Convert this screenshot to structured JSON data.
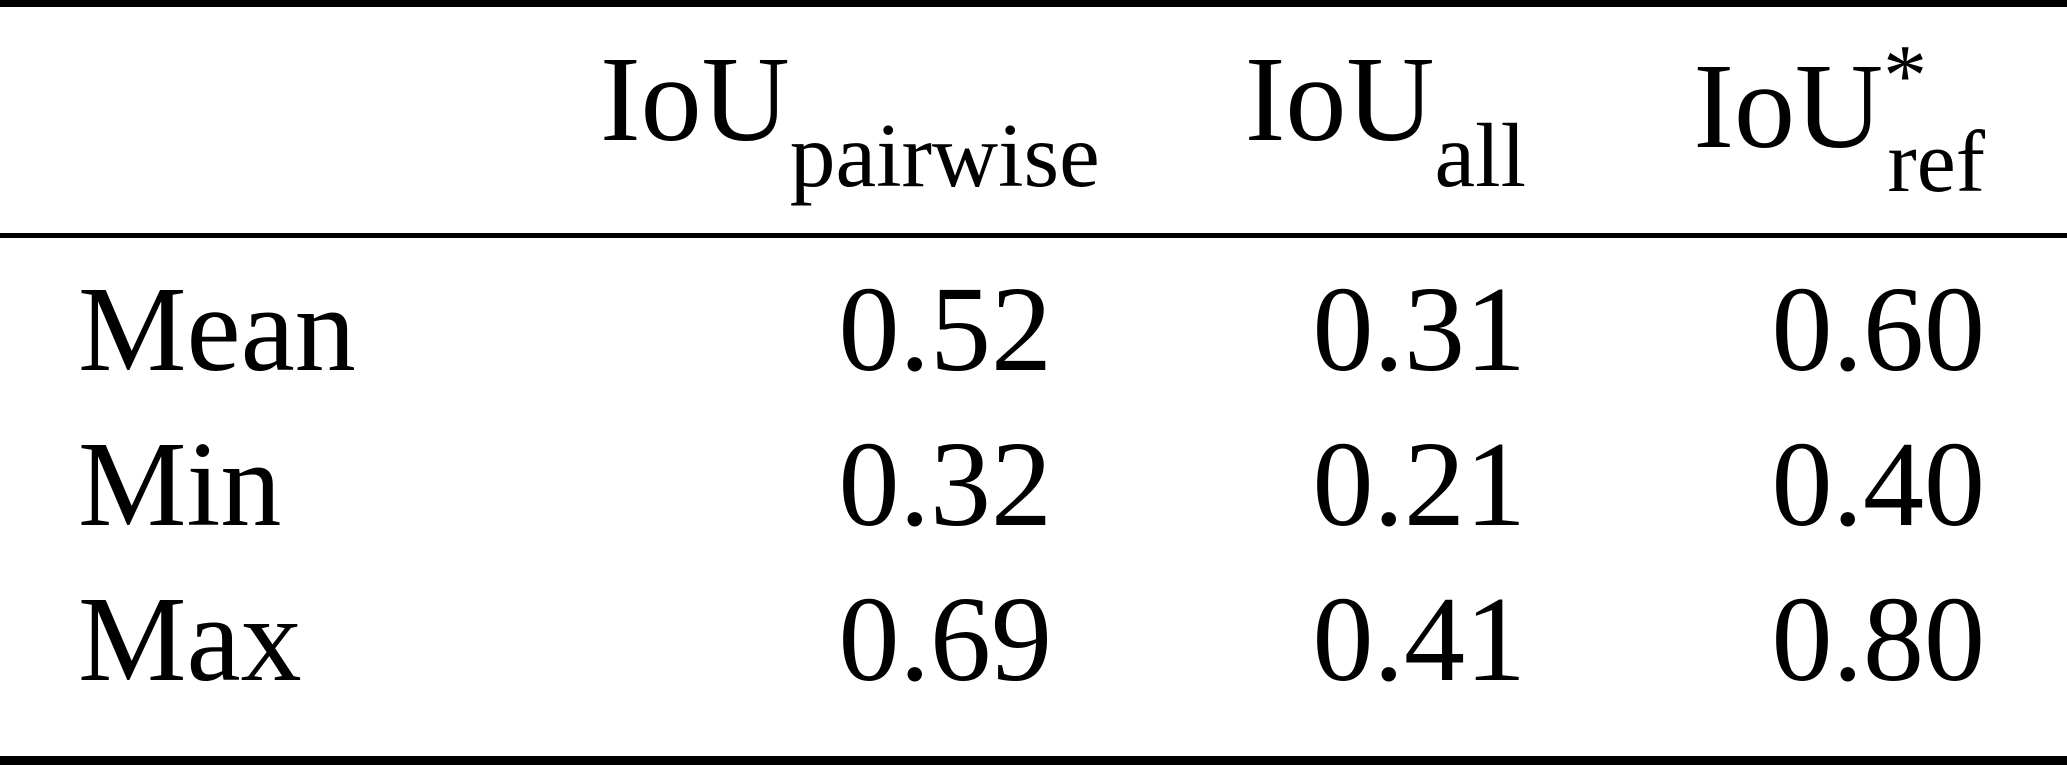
{
  "colors": {
    "background": "#ffffff",
    "text": "#000000",
    "rule": "#000000"
  },
  "table": {
    "header": {
      "row_label_column": "",
      "columns": [
        {
          "base": "IoU",
          "sup": "",
          "sub": "pairwise"
        },
        {
          "base": "IoU",
          "sup": "",
          "sub": "all"
        },
        {
          "base": "IoU",
          "sup": "*",
          "sub": "ref"
        }
      ]
    },
    "rows": [
      {
        "label": "Mean",
        "values": [
          "0.52",
          "0.31",
          "0.60"
        ]
      },
      {
        "label": "Min",
        "values": [
          "0.32",
          "0.21",
          "0.40"
        ]
      },
      {
        "label": "Max",
        "values": [
          "0.69",
          "0.41",
          "0.80"
        ]
      }
    ]
  },
  "chart_data": {
    "type": "table",
    "columns": [
      "",
      "IoU_pairwise",
      "IoU_all",
      "IoU*_ref"
    ],
    "rows": [
      [
        "Mean",
        0.52,
        0.31,
        0.6
      ],
      [
        "Min",
        0.32,
        0.21,
        0.4
      ],
      [
        "Max",
        0.69,
        0.41,
        0.8
      ]
    ]
  }
}
